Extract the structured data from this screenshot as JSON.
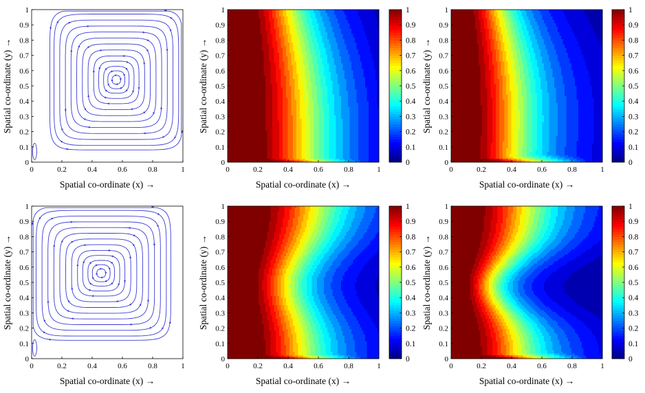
{
  "figure": {
    "xlabel": "Spatial co-ordinate (x) →",
    "ylabel": "Spatial co-ordinate (y) →",
    "ticks": [
      "0",
      "0.1",
      "0.2",
      "0.3",
      "0.4",
      "0.5",
      "0.6",
      "0.7",
      "0.8",
      "0.9",
      "1"
    ],
    "colorbar_ticks": [
      "0",
      "0.1",
      "0.2",
      "0.3",
      "0.4",
      "0.5",
      "0.6",
      "0.7",
      "0.8",
      "0.9",
      "1"
    ],
    "streamline_color": "#3a3ad6",
    "colormap": "jet"
  },
  "chart_data": [
    {
      "id": "top-streamlines",
      "type": "streamline",
      "xlim": [
        0,
        1
      ],
      "ylim": [
        0,
        1
      ],
      "xticks": [
        0,
        0.2,
        0.4,
        0.6,
        0.8,
        1
      ],
      "yticks": [
        0,
        0.1,
        0.2,
        0.3,
        0.4,
        0.5,
        0.6,
        0.7,
        0.8,
        0.9,
        1
      ],
      "vortex_center": [
        0.56,
        0.54
      ]
    },
    {
      "id": "top-contour-a",
      "type": "heatmap",
      "xlim": [
        0,
        1
      ],
      "ylim": [
        0,
        1
      ],
      "clim": [
        0,
        1
      ],
      "xticks": [
        0,
        0.2,
        0.4,
        0.6,
        0.8,
        1
      ],
      "yticks": [
        0,
        0.1,
        0.2,
        0.3,
        0.4,
        0.5,
        0.6,
        0.7,
        0.8,
        0.9,
        1
      ]
    },
    {
      "id": "top-contour-b",
      "type": "heatmap",
      "xlim": [
        0,
        1
      ],
      "ylim": [
        0,
        1
      ],
      "clim": [
        0,
        1
      ],
      "xticks": [
        0,
        0.2,
        0.4,
        0.6,
        0.8,
        1
      ],
      "yticks": [
        0,
        0.1,
        0.2,
        0.3,
        0.4,
        0.5,
        0.6,
        0.7,
        0.8,
        0.9,
        1
      ]
    },
    {
      "id": "bottom-streamlines",
      "type": "streamline",
      "xlim": [
        0,
        1
      ],
      "ylim": [
        0,
        1
      ],
      "xticks": [
        0,
        0.2,
        0.4,
        0.6,
        0.8,
        1
      ],
      "yticks": [
        0,
        0.1,
        0.2,
        0.3,
        0.4,
        0.5,
        0.6,
        0.7,
        0.8,
        0.9,
        1
      ],
      "vortex_center": [
        0.46,
        0.56
      ]
    },
    {
      "id": "bottom-contour-a",
      "type": "heatmap",
      "xlim": [
        0,
        1
      ],
      "ylim": [
        0,
        1
      ],
      "clim": [
        0,
        1
      ],
      "xticks": [
        0,
        0.2,
        0.4,
        0.6,
        0.8,
        1
      ],
      "yticks": [
        0,
        0.1,
        0.2,
        0.3,
        0.4,
        0.5,
        0.6,
        0.7,
        0.8,
        0.9,
        1
      ]
    },
    {
      "id": "bottom-contour-b",
      "type": "heatmap",
      "xlim": [
        0,
        1
      ],
      "ylim": [
        0,
        1
      ],
      "clim": [
        0,
        1
      ],
      "xticks": [
        0,
        0.2,
        0.4,
        0.6,
        0.8,
        1
      ],
      "yticks": [
        0,
        0.1,
        0.2,
        0.3,
        0.4,
        0.5,
        0.6,
        0.7,
        0.8,
        0.9,
        1
      ]
    }
  ]
}
